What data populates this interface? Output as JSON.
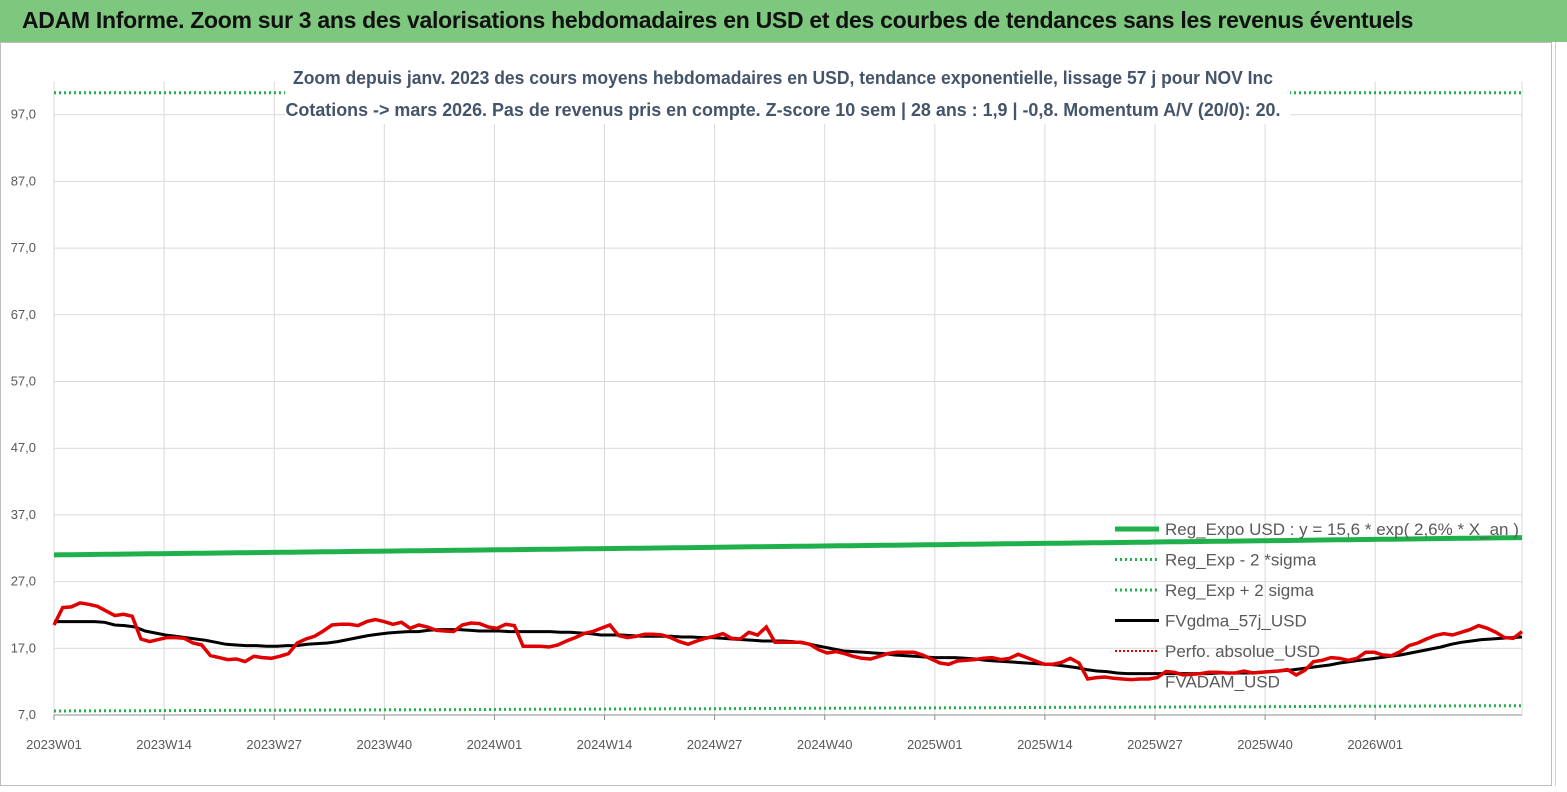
{
  "banner": {
    "title": "ADAM Informe. Zoom sur 3 ans des valorisations hebdomadaires en USD et des courbes de tendances sans les revenus éventuels"
  },
  "colors": {
    "banner_bg": "#7dc87e",
    "regression": "#1fb04c",
    "sigma": "#1fb04c",
    "fvgdma": "#000000",
    "perfo": "#e00000",
    "fvadam": "#e00000"
  },
  "chart_data": {
    "type": "line",
    "title_line1": "Zoom depuis janv. 2023 des cours moyens hebdomadaires en USD, tendance exponentielle, lissage 57 j pour NOV Inc",
    "title_line2": "Cotations -> mars 2026. Pas de revenus pris en compte. Z-score 10 sem  | 28 ans : 1,9 | -0,8. Momentum A/V (20/0): 20.",
    "ylim": [
      7,
      102
    ],
    "yticks": [
      "7,0",
      "17,0",
      "27,0",
      "37,0",
      "47,0",
      "57,0",
      "67,0",
      "77,0",
      "87,0",
      "97,0"
    ],
    "ytick_values": [
      7,
      17,
      27,
      37,
      47,
      57,
      67,
      77,
      87,
      97
    ],
    "xticks": [
      "2023W01",
      "2023W14",
      "2023W27",
      "2023W40",
      "2024W01",
      "2024W14",
      "2024W27",
      "2024W40",
      "2025W01",
      "2025W14",
      "2025W27",
      "2025W40",
      "2026W01"
    ],
    "grid": true,
    "legend_position": "right",
    "series": [
      {
        "name": "Reg_Expo  USD : y = 15,6 * exp( 2,6% *  X_an )",
        "style": "solid-thick",
        "start": 31.0,
        "end": 33.6
      },
      {
        "name": "Reg_Exp - 2 *sigma",
        "style": "dotted",
        "start": 7.6,
        "end": 8.4
      },
      {
        "name": "Reg_Exp + 2 sigma",
        "style": "dotted",
        "start": 100.3,
        "end": 100.3
      },
      {
        "name": "FVgdma_57j_USD",
        "style": "solid",
        "values": [
          21.0,
          21.0,
          21.0,
          21.0,
          21.0,
          20.9,
          20.5,
          20.4,
          20.2,
          19.6,
          19.3,
          19.0,
          18.8,
          18.6,
          18.4,
          18.2,
          17.9,
          17.6,
          17.5,
          17.4,
          17.4,
          17.3,
          17.3,
          17.4,
          17.4,
          17.6,
          17.7,
          17.8,
          18.0,
          18.3,
          18.6,
          18.9,
          19.1,
          19.3,
          19.4,
          19.5,
          19.5,
          19.7,
          19.8,
          19.8,
          19.8,
          19.7,
          19.6,
          19.6,
          19.6,
          19.5,
          19.5,
          19.5,
          19.5,
          19.5,
          19.4,
          19.4,
          19.3,
          19.2,
          19.0,
          19.0,
          19.0,
          18.9,
          18.8,
          18.8,
          18.8,
          18.8,
          18.7,
          18.7,
          18.6,
          18.6,
          18.5,
          18.4,
          18.3,
          18.2,
          18.1,
          18.1,
          18.1,
          18.0,
          17.8,
          17.5,
          17.2,
          16.9,
          16.6,
          16.5,
          16.4,
          16.3,
          16.2,
          16.0,
          15.9,
          15.8,
          15.7,
          15.6,
          15.6,
          15.6,
          15.5,
          15.4,
          15.2,
          15.1,
          15.0,
          14.9,
          14.8,
          14.7,
          14.6,
          14.5,
          14.3,
          14.1,
          13.8,
          13.6,
          13.5,
          13.3,
          13.2,
          13.2,
          13.2,
          13.2,
          13.2,
          13.2,
          13.2,
          13.2,
          13.2,
          13.3,
          13.3,
          13.3,
          13.3,
          13.4,
          13.5,
          13.6,
          13.7,
          13.9,
          14.1,
          14.3,
          14.5,
          14.8,
          15.0,
          15.2,
          15.4,
          15.6,
          15.8,
          16.0,
          16.3,
          16.6,
          16.9,
          17.2,
          17.6,
          17.9,
          18.1,
          18.3,
          18.4,
          18.5,
          18.6,
          18.7
        ]
      },
      {
        "name": "Perfo. absolue_USD",
        "style": "dotted",
        "values": []
      },
      {
        "name": "FVADAM_USD",
        "style": "solid-thick",
        "values": [
          20.5,
          23.1,
          23.2,
          23.8,
          23.6,
          23.3,
          22.6,
          21.9,
          22.1,
          21.8,
          18.4,
          18.0,
          18.3,
          18.6,
          18.6,
          18.5,
          17.8,
          17.5,
          15.9,
          15.6,
          15.3,
          15.4,
          15.0,
          15.8,
          15.6,
          15.5,
          15.8,
          16.2,
          17.8,
          18.4,
          18.8,
          19.6,
          20.5,
          20.6,
          20.6,
          20.4,
          21.0,
          21.3,
          21.0,
          20.6,
          20.9,
          20.0,
          20.5,
          20.2,
          19.7,
          19.6,
          19.5,
          20.5,
          20.8,
          20.7,
          20.2,
          20.0,
          20.6,
          20.4,
          17.3,
          17.3,
          17.3,
          17.2,
          17.5,
          18.1,
          18.6,
          19.2,
          19.5,
          20.0,
          20.5,
          18.9,
          18.6,
          18.8,
          19.1,
          19.1,
          19.0,
          18.6,
          18.0,
          17.6,
          18.1,
          18.5,
          18.8,
          19.2,
          18.5,
          18.4,
          19.4,
          19.0,
          20.2,
          17.9,
          17.9,
          17.9,
          17.9,
          17.6,
          16.8,
          16.3,
          16.5,
          16.2,
          15.8,
          15.5,
          15.4,
          15.8,
          16.2,
          16.4,
          16.4,
          16.4,
          16.0,
          15.4,
          14.8,
          14.6,
          15.1,
          15.2,
          15.3,
          15.5,
          15.6,
          15.3,
          15.5,
          16.1,
          15.6,
          15.1,
          14.6,
          14.6,
          14.9,
          15.5,
          14.8,
          12.4,
          12.6,
          12.7,
          12.5,
          12.4,
          12.3,
          12.4,
          12.4,
          12.6,
          13.5,
          13.4,
          13.0,
          13.1,
          13.2,
          13.4,
          13.4,
          13.3,
          13.3,
          13.6,
          13.3,
          13.4,
          13.5,
          13.6,
          13.8,
          13.0,
          13.7,
          15.0,
          15.2,
          15.6,
          15.5,
          15.2,
          15.5,
          16.4,
          16.4,
          16.0,
          15.9,
          16.5,
          17.4,
          17.8,
          18.4,
          18.9,
          19.2,
          19.0,
          19.4,
          19.8,
          20.4,
          20.0,
          19.4,
          18.6,
          18.5,
          19.5
        ]
      }
    ]
  }
}
